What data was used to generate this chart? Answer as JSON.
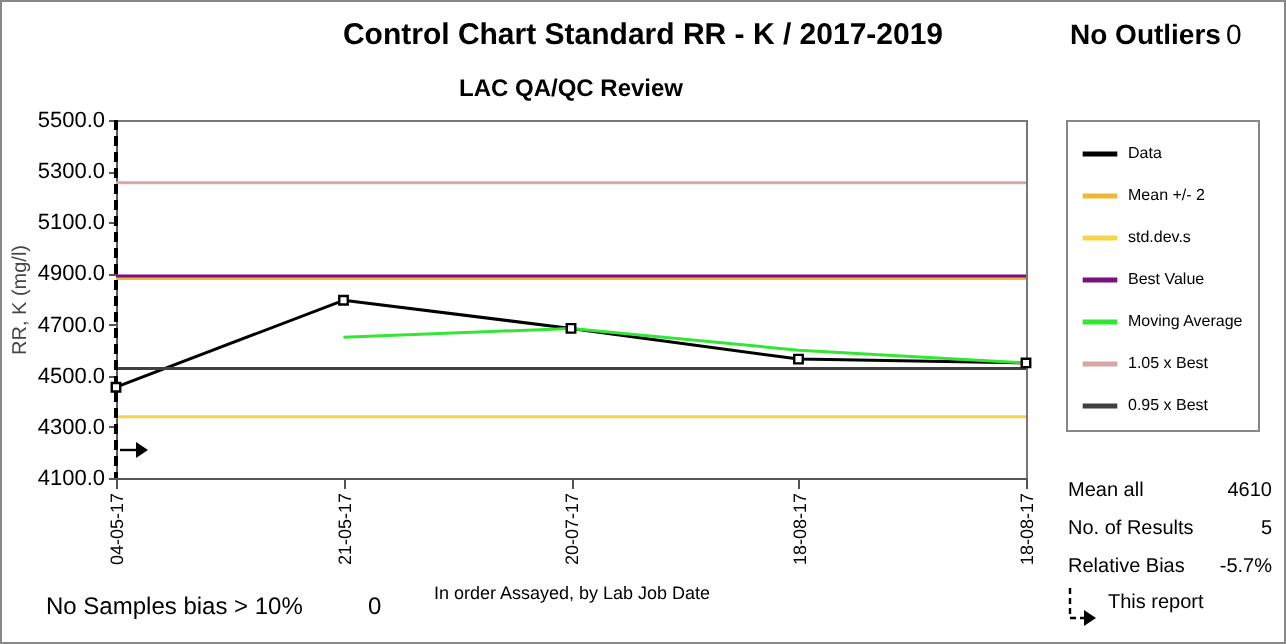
{
  "chart_data": {
    "type": "line",
    "title": "Control Chart Standard RR - K / 2017-2019",
    "subtitle": "LAC QA/QC Review",
    "xlabel": "In order Assayed, by Lab Job Date",
    "ylabel": "RR, K (mg/l)",
    "categories": [
      "04-05-17",
      "21-05-17",
      "20-07-17",
      "18-08-17",
      "18-08-17"
    ],
    "series": [
      {
        "name": "Data",
        "color": "#000000",
        "marker": "square",
        "values": [
          4455,
          4795,
          4685,
          4565,
          4550
        ]
      },
      {
        "name": "Mean +/- 2",
        "color": "#f2b632",
        "values": [
          4880,
          4880,
          4880,
          4880,
          4880
        ]
      },
      {
        "name": "std.dev.s",
        "color": "#f5d547",
        "values": [
          4340,
          4340,
          4340,
          4340,
          4340
        ]
      },
      {
        "name": "Best Value",
        "color": "#7b0f7b",
        "values": [
          4890,
          4890,
          4890,
          4890,
          4890
        ]
      },
      {
        "name": "Moving Average",
        "color": "#33e633",
        "values": [
          null,
          4650,
          4685,
          4600,
          4550
        ]
      },
      {
        "name": "1.05 x Best",
        "color": "#d9a6a6",
        "values": [
          5255,
          5255,
          5255,
          5255,
          5255
        ]
      },
      {
        "name": "0.95 x Best",
        "color": "#404040",
        "values": [
          4528,
          4528,
          4528,
          4528,
          4528
        ]
      }
    ],
    "ylim": [
      4100,
      5500
    ],
    "yticks": [
      {
        "value": 4100,
        "label": "4100.0"
      },
      {
        "value": 4300,
        "label": "4300.0"
      },
      {
        "value": 4500,
        "label": "4500.0"
      },
      {
        "value": 4700,
        "label": "4700.0"
      },
      {
        "value": 4900,
        "label": "4900.0"
      },
      {
        "value": 5100,
        "label": "5100.0"
      },
      {
        "value": 5300,
        "label": "5300.0"
      },
      {
        "value": 5500,
        "label": "5500.0"
      }
    ],
    "grid": false,
    "legend": "right",
    "ref_lines": [
      {
        "axis": "x",
        "value": "04-05-17",
        "color": "#000000",
        "line_style": "dashed"
      }
    ],
    "annotations": [
      "No Outliers",
      "0",
      "Mean all",
      "4610",
      "No. of Results",
      "5",
      "Relative Bias",
      "-5.7%",
      "This report",
      "No Samples bias > 10%",
      "0"
    ]
  }
}
